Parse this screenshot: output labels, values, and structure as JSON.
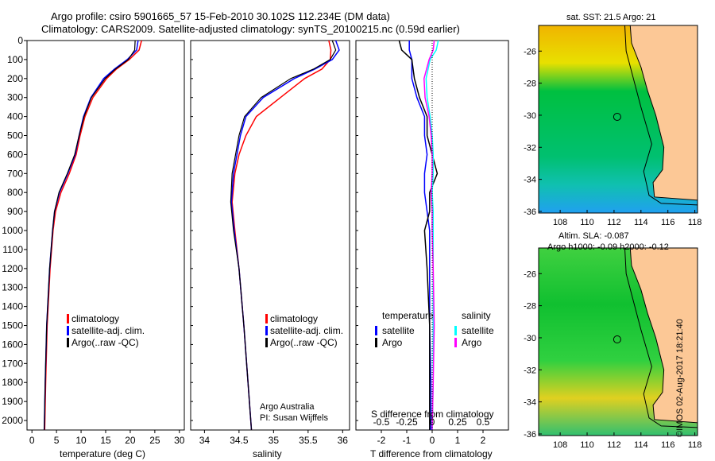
{
  "title": {
    "line1": "Argo profile: csiro 5901665_57 15-Feb-2010 30.102S 112.234E (DM data)",
    "line2": "Climatology: CARS2009. Satellite-adjusted climatology: synTS_20100215.nc (0.59d earlier)"
  },
  "side_stamp": "©IMOS 02-Aug-2017 18:21:40",
  "colors": {
    "clim": "#ff0000",
    "sat": "#0000ff",
    "argo": "#000000",
    "sal_sat": "#00ffff",
    "sal_argo": "#ff00ff"
  },
  "chart_data": [
    {
      "type": "line",
      "name": "temperature",
      "xlabel": "temperature (deg C)",
      "xlim": [
        -1,
        31
      ],
      "ylim": [
        2050,
        0
      ],
      "xticks": [
        0,
        5,
        10,
        15,
        20,
        25,
        30
      ],
      "yticks": [
        0,
        100,
        200,
        300,
        400,
        500,
        600,
        700,
        800,
        900,
        1000,
        1100,
        1200,
        1300,
        1400,
        1500,
        1600,
        1700,
        1800,
        1900,
        2000
      ],
      "depth": [
        0,
        50,
        100,
        150,
        200,
        300,
        400,
        500,
        600,
        700,
        800,
        900,
        1000,
        1200,
        1500,
        1800,
        2050
      ],
      "series": [
        {
          "name": "climatology",
          "values": [
            22.3,
            21.8,
            19.8,
            17.2,
            15.2,
            12.4,
            10.8,
            9.8,
            9.0,
            7.6,
            5.9,
            4.8,
            4.3,
            3.7,
            3.1,
            2.8,
            2.6
          ]
        },
        {
          "name": "satellite-adj. clim.",
          "values": [
            21.6,
            21.3,
            19.4,
            16.8,
            14.6,
            12.0,
            10.5,
            9.6,
            8.8,
            7.3,
            5.6,
            4.6,
            4.2,
            3.6,
            3.0,
            2.7,
            2.5
          ]
        },
        {
          "name": "Argo(..raw -QC)",
          "values": [
            21.0,
            20.9,
            19.6,
            17.0,
            14.9,
            12.1,
            10.6,
            9.6,
            8.7,
            7.2,
            5.5,
            4.6,
            4.2,
            3.6,
            3.0,
            2.7,
            2.5
          ]
        }
      ],
      "legend": [
        "climatology",
        "satellite-adj. clim.",
        "Argo(..raw -QC)"
      ]
    },
    {
      "type": "line",
      "name": "salinity",
      "xlabel": "salinity",
      "xlim": [
        33.8,
        36.1
      ],
      "ylim": [
        2050,
        0
      ],
      "xticks": [
        34,
        34.5,
        35,
        35.5,
        36
      ],
      "depth": [
        0,
        50,
        100,
        150,
        200,
        300,
        400,
        500,
        600,
        700,
        850,
        1000,
        1200,
        1500,
        1800,
        2050
      ],
      "series": [
        {
          "name": "climatology",
          "values": [
            35.8,
            35.83,
            35.82,
            35.7,
            35.45,
            35.1,
            34.75,
            34.6,
            34.5,
            34.44,
            34.4,
            34.44,
            34.5,
            34.57,
            34.63,
            34.68
          ]
        },
        {
          "name": "satellite-adj. clim.",
          "values": [
            35.9,
            35.95,
            35.85,
            35.6,
            35.3,
            34.85,
            34.6,
            34.52,
            34.47,
            34.42,
            34.39,
            34.43,
            34.5,
            34.57,
            34.63,
            34.68
          ]
        },
        {
          "name": "Argo(..raw -QC)",
          "values": [
            35.85,
            35.9,
            35.82,
            35.58,
            35.25,
            34.82,
            34.58,
            34.5,
            34.45,
            34.4,
            34.38,
            34.42,
            34.5,
            34.57,
            34.63,
            34.68
          ]
        }
      ],
      "legend": [
        "climatology",
        "satellite-adj. clim.",
        "Argo(..raw -QC)"
      ],
      "annotation": [
        "Argo Australia",
        "PI: Susan Wijffels"
      ]
    },
    {
      "type": "line",
      "name": "difference",
      "xlabel": "T difference from climatology",
      "x2label": "S difference from climatology",
      "xlim": [
        -3,
        3
      ],
      "x2lim": [
        -0.75,
        0.75
      ],
      "xticks": [
        -2,
        -1,
        0,
        1,
        2
      ],
      "x2ticks": [
        "-0.5",
        "-0.25",
        "0",
        "0.25",
        "0.5"
      ],
      "x2tickvals": [
        -0.5,
        -0.25,
        0,
        0.25,
        0.5
      ],
      "depth": [
        0,
        50,
        100,
        200,
        300,
        400,
        500,
        600,
        700,
        800,
        900,
        1000,
        1200,
        1500,
        1800,
        2050
      ],
      "series": [
        {
          "name": "temperature satellite",
          "values": [
            -0.9,
            -0.9,
            -0.8,
            -0.8,
            -0.6,
            -0.3,
            -0.3,
            -0.2,
            -0.3,
            -0.3,
            -0.2,
            -0.1,
            -0.1,
            -0.1,
            -0.05,
            -0.05
          ]
        },
        {
          "name": "temperature Argo",
          "values": [
            -1.3,
            -1.2,
            -0.8,
            -0.7,
            -0.5,
            -0.2,
            -0.2,
            0,
            0.2,
            -0.1,
            -0.1,
            -0.3,
            -0.2,
            -0.1,
            -0.1,
            -0.1
          ]
        },
        {
          "name": "salinity satellite",
          "values": [
            0.06,
            0.04,
            -0.02,
            -0.06,
            -0.05,
            -0.02,
            0.0,
            0.01,
            0.01,
            0.0,
            0.01,
            0.01,
            0.01,
            0.01,
            0.01,
            0.0
          ]
        },
        {
          "name": "salinity Argo",
          "values": [
            0.02,
            0.01,
            -0.03,
            -0.08,
            -0.07,
            -0.03,
            -0.01,
            0.0,
            0.0,
            -0.01,
            0.0,
            0.0,
            0.01,
            0.02,
            0.01,
            0.0
          ]
        }
      ],
      "legend": {
        "temperature": "temperature",
        "salinity": "salinity",
        "satellite": "satellite",
        "argo": "Argo"
      }
    },
    {
      "type": "heatmap",
      "name": "sst-map",
      "title": "sat. SST: 21.5 Argo: 21",
      "xticks": [
        108,
        110,
        112,
        114,
        116,
        118
      ],
      "yticks": [
        -26,
        -28,
        -30,
        -32,
        -34,
        -36
      ],
      "argo_lon": 112.234,
      "argo_lat": -30.102
    },
    {
      "type": "heatmap",
      "name": "sla-map",
      "title1": "Altim. SLA: -0.087",
      "title2": "Argo h1000: -0.09 h2000: -0.12",
      "xticks": [
        108,
        110,
        112,
        114,
        116,
        118
      ],
      "yticks": [
        -26,
        -28,
        -30,
        -32,
        -34,
        -36
      ],
      "argo_lon": 112.234,
      "argo_lat": -30.102
    }
  ]
}
